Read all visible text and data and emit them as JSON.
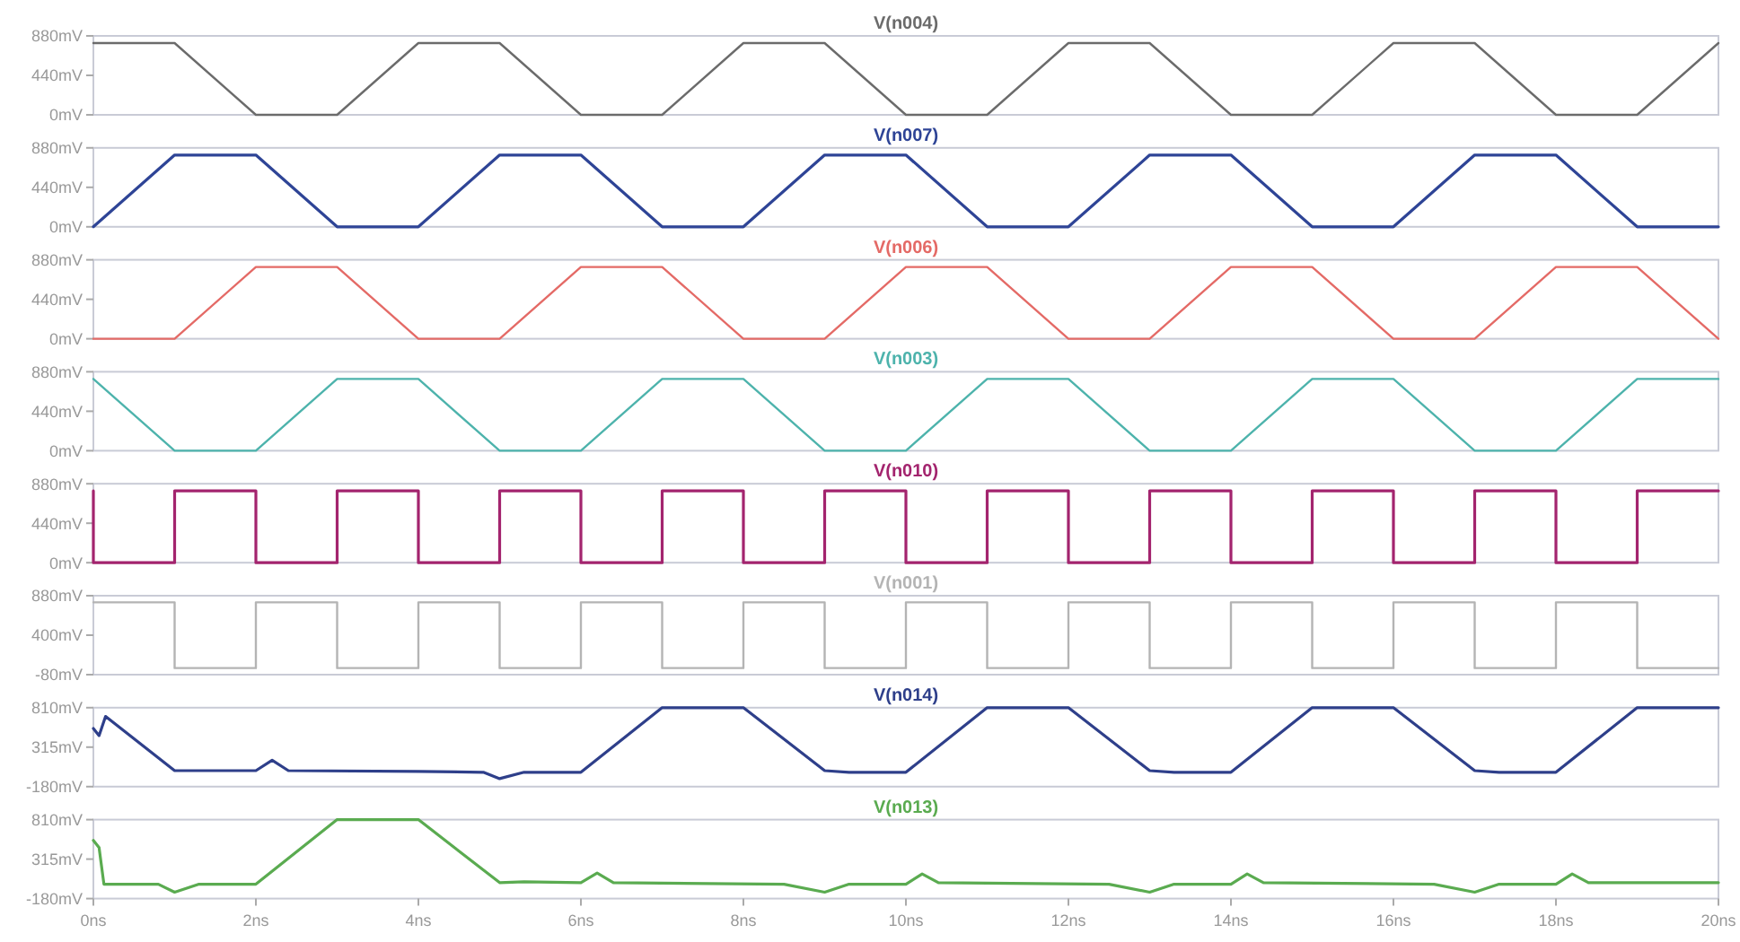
{
  "chart_data": [
    {
      "type": "line",
      "title": "V(n004)",
      "x": [
        0,
        1,
        2,
        3,
        4,
        5,
        6,
        7,
        8,
        9,
        10,
        11,
        12,
        13,
        14,
        15,
        16,
        17,
        18,
        19,
        20
      ],
      "xlim": [
        0,
        20
      ],
      "ylim": [
        0,
        880
      ],
      "yticks": [
        {
          "value": 0,
          "label": "0mV"
        },
        {
          "value": 440,
          "label": "440mV"
        },
        {
          "value": 880,
          "label": "880mV"
        }
      ],
      "tick_labels": "y",
      "series": [
        {
          "color": "#6b6b6b",
          "values": [
            800,
            800,
            0,
            0,
            800,
            800,
            0,
            0,
            800,
            800,
            0,
            0,
            800,
            800,
            0,
            0,
            800,
            800,
            0,
            0,
            800
          ]
        }
      ]
    },
    {
      "type": "line",
      "title": "V(n007)",
      "x": [
        0,
        1,
        2,
        3,
        4,
        5,
        6,
        7,
        8,
        9,
        10,
        11,
        12,
        13,
        14,
        15,
        16,
        17,
        18,
        19,
        20
      ],
      "xlim": [
        0,
        20
      ],
      "ylim": [
        0,
        880
      ],
      "yticks": [
        {
          "value": 0,
          "label": "0mV"
        },
        {
          "value": 440,
          "label": "440mV"
        },
        {
          "value": 880,
          "label": "880mV"
        }
      ],
      "tick_labels": "y",
      "series": [
        {
          "color": "#2e4496",
          "values": [
            0,
            800,
            800,
            0,
            0,
            800,
            800,
            0,
            0,
            800,
            800,
            0,
            0,
            800,
            800,
            0,
            0,
            800,
            800,
            0,
            0
          ]
        }
      ]
    },
    {
      "type": "line",
      "title": "V(n006)",
      "x": [
        0,
        1,
        2,
        3,
        4,
        5,
        6,
        7,
        8,
        9,
        10,
        11,
        12,
        13,
        14,
        15,
        16,
        17,
        18,
        19,
        20
      ],
      "xlim": [
        0,
        20
      ],
      "ylim": [
        0,
        880
      ],
      "yticks": [
        {
          "value": 0,
          "label": "0mV"
        },
        {
          "value": 440,
          "label": "440mV"
        },
        {
          "value": 880,
          "label": "880mV"
        }
      ],
      "tick_labels": "y",
      "series": [
        {
          "color": "#e46a66",
          "values": [
            0,
            0,
            800,
            800,
            0,
            0,
            800,
            800,
            0,
            0,
            800,
            800,
            0,
            0,
            800,
            800,
            0,
            0,
            800,
            800,
            0
          ]
        }
      ]
    },
    {
      "type": "line",
      "title": "V(n003)",
      "x": [
        0,
        1,
        2,
        3,
        4,
        5,
        6,
        7,
        8,
        9,
        10,
        11,
        12,
        13,
        14,
        15,
        16,
        17,
        18,
        19,
        20
      ],
      "xlim": [
        0,
        20
      ],
      "ylim": [
        0,
        880
      ],
      "yticks": [
        {
          "value": 0,
          "label": "0mV"
        },
        {
          "value": 440,
          "label": "440mV"
        },
        {
          "value": 880,
          "label": "880mV"
        }
      ],
      "tick_labels": "y",
      "series": [
        {
          "color": "#4db3ac",
          "values": [
            800,
            0,
            0,
            800,
            800,
            0,
            0,
            800,
            800,
            0,
            0,
            800,
            800,
            0,
            0,
            800,
            800,
            0,
            0,
            800,
            800
          ]
        }
      ]
    },
    {
      "type": "step",
      "title": "V(n010)",
      "x": [
        0,
        0,
        1,
        2,
        3,
        4,
        5,
        6,
        7,
        8,
        9,
        10,
        11,
        12,
        13,
        14,
        15,
        16,
        17,
        18,
        19,
        20
      ],
      "xlim": [
        0,
        20
      ],
      "ylim": [
        0,
        880
      ],
      "yticks": [
        {
          "value": 0,
          "label": "0mV"
        },
        {
          "value": 440,
          "label": "440mV"
        },
        {
          "value": 880,
          "label": "880mV"
        }
      ],
      "tick_labels": "y",
      "series": [
        {
          "color": "#a3246e",
          "values": [
            800,
            0,
            800,
            0,
            800,
            0,
            800,
            0,
            800,
            0,
            800,
            0,
            800,
            0,
            800,
            0,
            800,
            0,
            800,
            0,
            800,
            800
          ]
        }
      ]
    },
    {
      "type": "step",
      "title": "V(n001)",
      "x": [
        0,
        1,
        2,
        3,
        4,
        5,
        6,
        7,
        8,
        9,
        10,
        11,
        12,
        13,
        14,
        15,
        16,
        17,
        18,
        19,
        20
      ],
      "xlim": [
        0,
        20
      ],
      "ylim": [
        -80,
        880
      ],
      "yticks": [
        {
          "value": -80,
          "label": "-80mV"
        },
        {
          "value": 400,
          "label": "400mV"
        },
        {
          "value": 880,
          "label": "880mV"
        }
      ],
      "tick_labels": "y",
      "series": [
        {
          "color": "#b4b4b4",
          "values": [
            800,
            0,
            800,
            0,
            800,
            0,
            800,
            0,
            800,
            0,
            800,
            0,
            800,
            0,
            800,
            0,
            800,
            0,
            800,
            0,
            0
          ]
        }
      ]
    },
    {
      "type": "line",
      "title": "V(n014)",
      "x": [
        0,
        0.07,
        0.15,
        1,
        2,
        2.2,
        2.4,
        4,
        4.8,
        5,
        5.3,
        6,
        7,
        8,
        9,
        9.3,
        10,
        11,
        12,
        13,
        13.3,
        14,
        15,
        16,
        17,
        17.3,
        18,
        19,
        20
      ],
      "xlim": [
        0,
        20
      ],
      "ylim": [
        -180,
        810
      ],
      "yticks": [
        {
          "value": -180,
          "label": "-180mV"
        },
        {
          "value": 315,
          "label": "315mV"
        },
        {
          "value": 810,
          "label": "810mV"
        }
      ],
      "tick_labels": "y",
      "series": [
        {
          "color": "#2e3f8a",
          "values": [
            550,
            460,
            700,
            20,
            20,
            150,
            20,
            10,
            0,
            -80,
            0,
            0,
            810,
            810,
            20,
            0,
            0,
            810,
            810,
            20,
            0,
            0,
            810,
            810,
            20,
            0,
            0,
            810,
            810
          ]
        }
      ]
    },
    {
      "type": "line",
      "title": "V(n013)",
      "x": [
        0,
        0.07,
        0.13,
        0.8,
        1,
        1.3,
        2,
        3,
        4,
        5,
        5.3,
        6,
        6.2,
        6.4,
        8.5,
        9,
        9.3,
        10,
        10.2,
        10.4,
        12.5,
        13,
        13.3,
        14,
        14.2,
        14.4,
        16.5,
        17,
        17.3,
        18,
        18.2,
        18.4,
        20
      ],
      "xlim": [
        0,
        20
      ],
      "xticks": [
        {
          "value": 0,
          "label": "0ns"
        },
        {
          "value": 2,
          "label": "2ns"
        },
        {
          "value": 4,
          "label": "4ns"
        },
        {
          "value": 6,
          "label": "6ns"
        },
        {
          "value": 8,
          "label": "8ns"
        },
        {
          "value": 10,
          "label": "10ns"
        },
        {
          "value": 12,
          "label": "12ns"
        },
        {
          "value": 14,
          "label": "14ns"
        },
        {
          "value": 16,
          "label": "16ns"
        },
        {
          "value": 18,
          "label": "18ns"
        },
        {
          "value": 20,
          "label": "20ns"
        }
      ],
      "ylim": [
        -180,
        810
      ],
      "yticks": [
        {
          "value": -180,
          "label": "-180mV"
        },
        {
          "value": 315,
          "label": "315mV"
        },
        {
          "value": 810,
          "label": "810mV"
        }
      ],
      "series": [
        {
          "color": "#5aab50",
          "values": [
            550,
            460,
            0,
            0,
            -100,
            0,
            0,
            810,
            810,
            20,
            30,
            20,
            140,
            20,
            0,
            -100,
            0,
            0,
            130,
            20,
            0,
            -100,
            0,
            0,
            130,
            20,
            0,
            -100,
            0,
            0,
            130,
            20,
            20
          ]
        }
      ]
    }
  ]
}
